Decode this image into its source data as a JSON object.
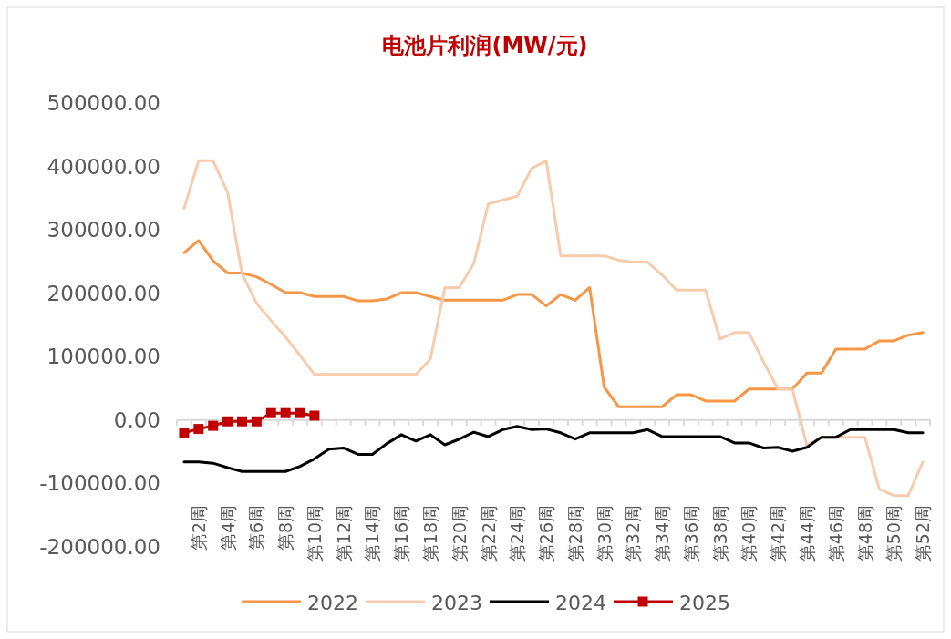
{
  "chart_data": {
    "type": "line",
    "title": "电池片利润(MW/元)",
    "categories": [
      null,
      "第2周",
      null,
      "第4周",
      null,
      "第6周",
      null,
      "第8周",
      null,
      "第10周",
      null,
      "第12周",
      null,
      "第14周",
      null,
      "第16周",
      null,
      "第18周",
      null,
      "第20周",
      null,
      "第22周",
      null,
      "第24周",
      null,
      "第26周",
      null,
      "第28周",
      null,
      "第30周",
      null,
      "第32周",
      null,
      "第34周",
      null,
      "第36周",
      null,
      "第38周",
      null,
      "第40周",
      null,
      "第42周",
      null,
      "第44周",
      null,
      "第46周",
      null,
      "第48周",
      null,
      "第50周",
      null,
      "第52周"
    ],
    "series": [
      {
        "name": "2022",
        "color": "#f79646",
        "values": [
          264000,
          283000,
          251000,
          232000,
          232000,
          226000,
          214000,
          201000,
          201000,
          195000,
          195000,
          195000,
          188000,
          188000,
          191000,
          201000,
          201000,
          195000,
          189000,
          189000,
          189000,
          189000,
          189000,
          198000,
          198000,
          180000,
          198000,
          189000,
          209000,
          52000,
          21000,
          21000,
          21000,
          21000,
          40000,
          40000,
          30000,
          30000,
          30000,
          49000,
          49000,
          49000,
          49000,
          74000,
          74000,
          112000,
          112000,
          112000,
          125000,
          125000,
          134000,
          138000
        ]
      },
      {
        "name": "2023",
        "color": "#f8cbad",
        "values": [
          334000,
          409000,
          409000,
          359000,
          231000,
          184000,
          157000,
          131000,
          102000,
          72000,
          72000,
          72000,
          72000,
          72000,
          72000,
          72000,
          72000,
          96000,
          209000,
          209000,
          247000,
          341000,
          347000,
          353000,
          397000,
          409000,
          259000,
          259000,
          259000,
          259000,
          252000,
          249000,
          249000,
          229000,
          205000,
          205000,
          205000,
          128000,
          138000,
          138000,
          92000,
          49000,
          49000,
          -40000,
          -27000,
          -27000,
          -27000,
          -27000,
          -109000,
          -119000,
          -119000,
          -66000
        ]
      },
      {
        "name": "2024",
        "color": "#000000",
        "values": [
          -66000,
          -66000,
          -68000,
          -75000,
          -81000,
          -81000,
          -81000,
          -81000,
          -73000,
          -61000,
          -46000,
          -44000,
          -54000,
          -54000,
          -37000,
          -23000,
          -33000,
          -23000,
          -39000,
          -30000,
          -19000,
          -26000,
          -15000,
          -10000,
          -15000,
          -14000,
          -20000,
          -30000,
          -20000,
          -20000,
          -20000,
          -20000,
          -15000,
          -26000,
          -26000,
          -26000,
          -26000,
          -26000,
          -36000,
          -36000,
          -44000,
          -43000,
          -49000,
          -43000,
          -27000,
          -27000,
          -15000,
          -15000,
          -15000,
          -15000,
          -20000,
          -20000
        ]
      },
      {
        "name": "2025",
        "color": "#c00000",
        "marker": "square",
        "values": [
          -20000,
          -14000,
          -9000,
          -2000,
          -2000,
          -2000,
          11000,
          11000,
          11000,
          7000,
          null,
          null,
          null,
          null,
          null,
          null,
          null,
          null,
          null,
          null,
          null,
          null,
          null,
          null,
          null,
          null,
          null,
          null,
          null,
          null,
          null,
          null,
          null,
          null,
          null,
          null,
          null,
          null,
          null,
          null,
          null,
          null,
          null,
          null,
          null,
          null,
          null,
          null,
          null,
          null,
          null,
          null
        ]
      }
    ],
    "ylim": [
      -200000,
      500000
    ],
    "yticks": [
      {
        "value": -200000,
        "label": "-200000.00"
      },
      {
        "value": -100000,
        "label": "-100000.00"
      },
      {
        "value": 0,
        "label": "0.00"
      },
      {
        "value": 100000,
        "label": "100000.00"
      },
      {
        "value": 200000,
        "label": "200000.00"
      },
      {
        "value": 300000,
        "label": "300000.00"
      },
      {
        "value": 400000,
        "label": "400000.00"
      },
      {
        "value": 500000,
        "label": "500000.00"
      }
    ],
    "legend": "bottom",
    "marker": "none"
  }
}
